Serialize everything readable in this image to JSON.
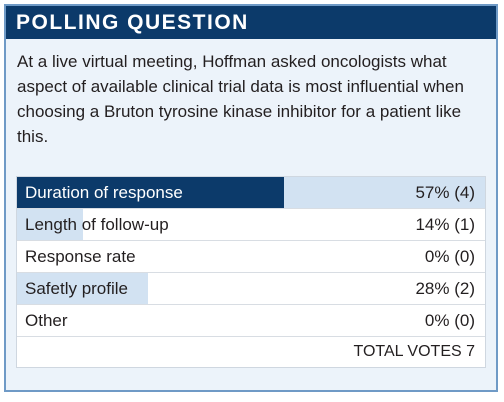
{
  "header": {
    "title": "POLLING QUESTION"
  },
  "question": "At a live virtual meeting, Hoffman asked oncologists what aspect of available clinical trial data is most influential when choosing a Bruton tyrosine kinase inhibitor for a patient like this.",
  "results": [
    {
      "label": "Duration of response",
      "value": "57% (4)",
      "percent": 57
    },
    {
      "label": "Length of follow-up",
      "value": "14% (1)",
      "percent": 14
    },
    {
      "label": "Response rate",
      "value": "0% (0)",
      "percent": 0
    },
    {
      "label": "Safetly profile",
      "value": "28% (2)",
      "percent": 28
    },
    {
      "label": "Other",
      "value": "0% (0)",
      "percent": 0
    }
  ],
  "total": "TOTAL VOTES 7",
  "colors": {
    "header": "#0c3a6a",
    "bar": "#d2e2f2",
    "border": "#6f9ac6",
    "background": "#ecf3fa"
  }
}
